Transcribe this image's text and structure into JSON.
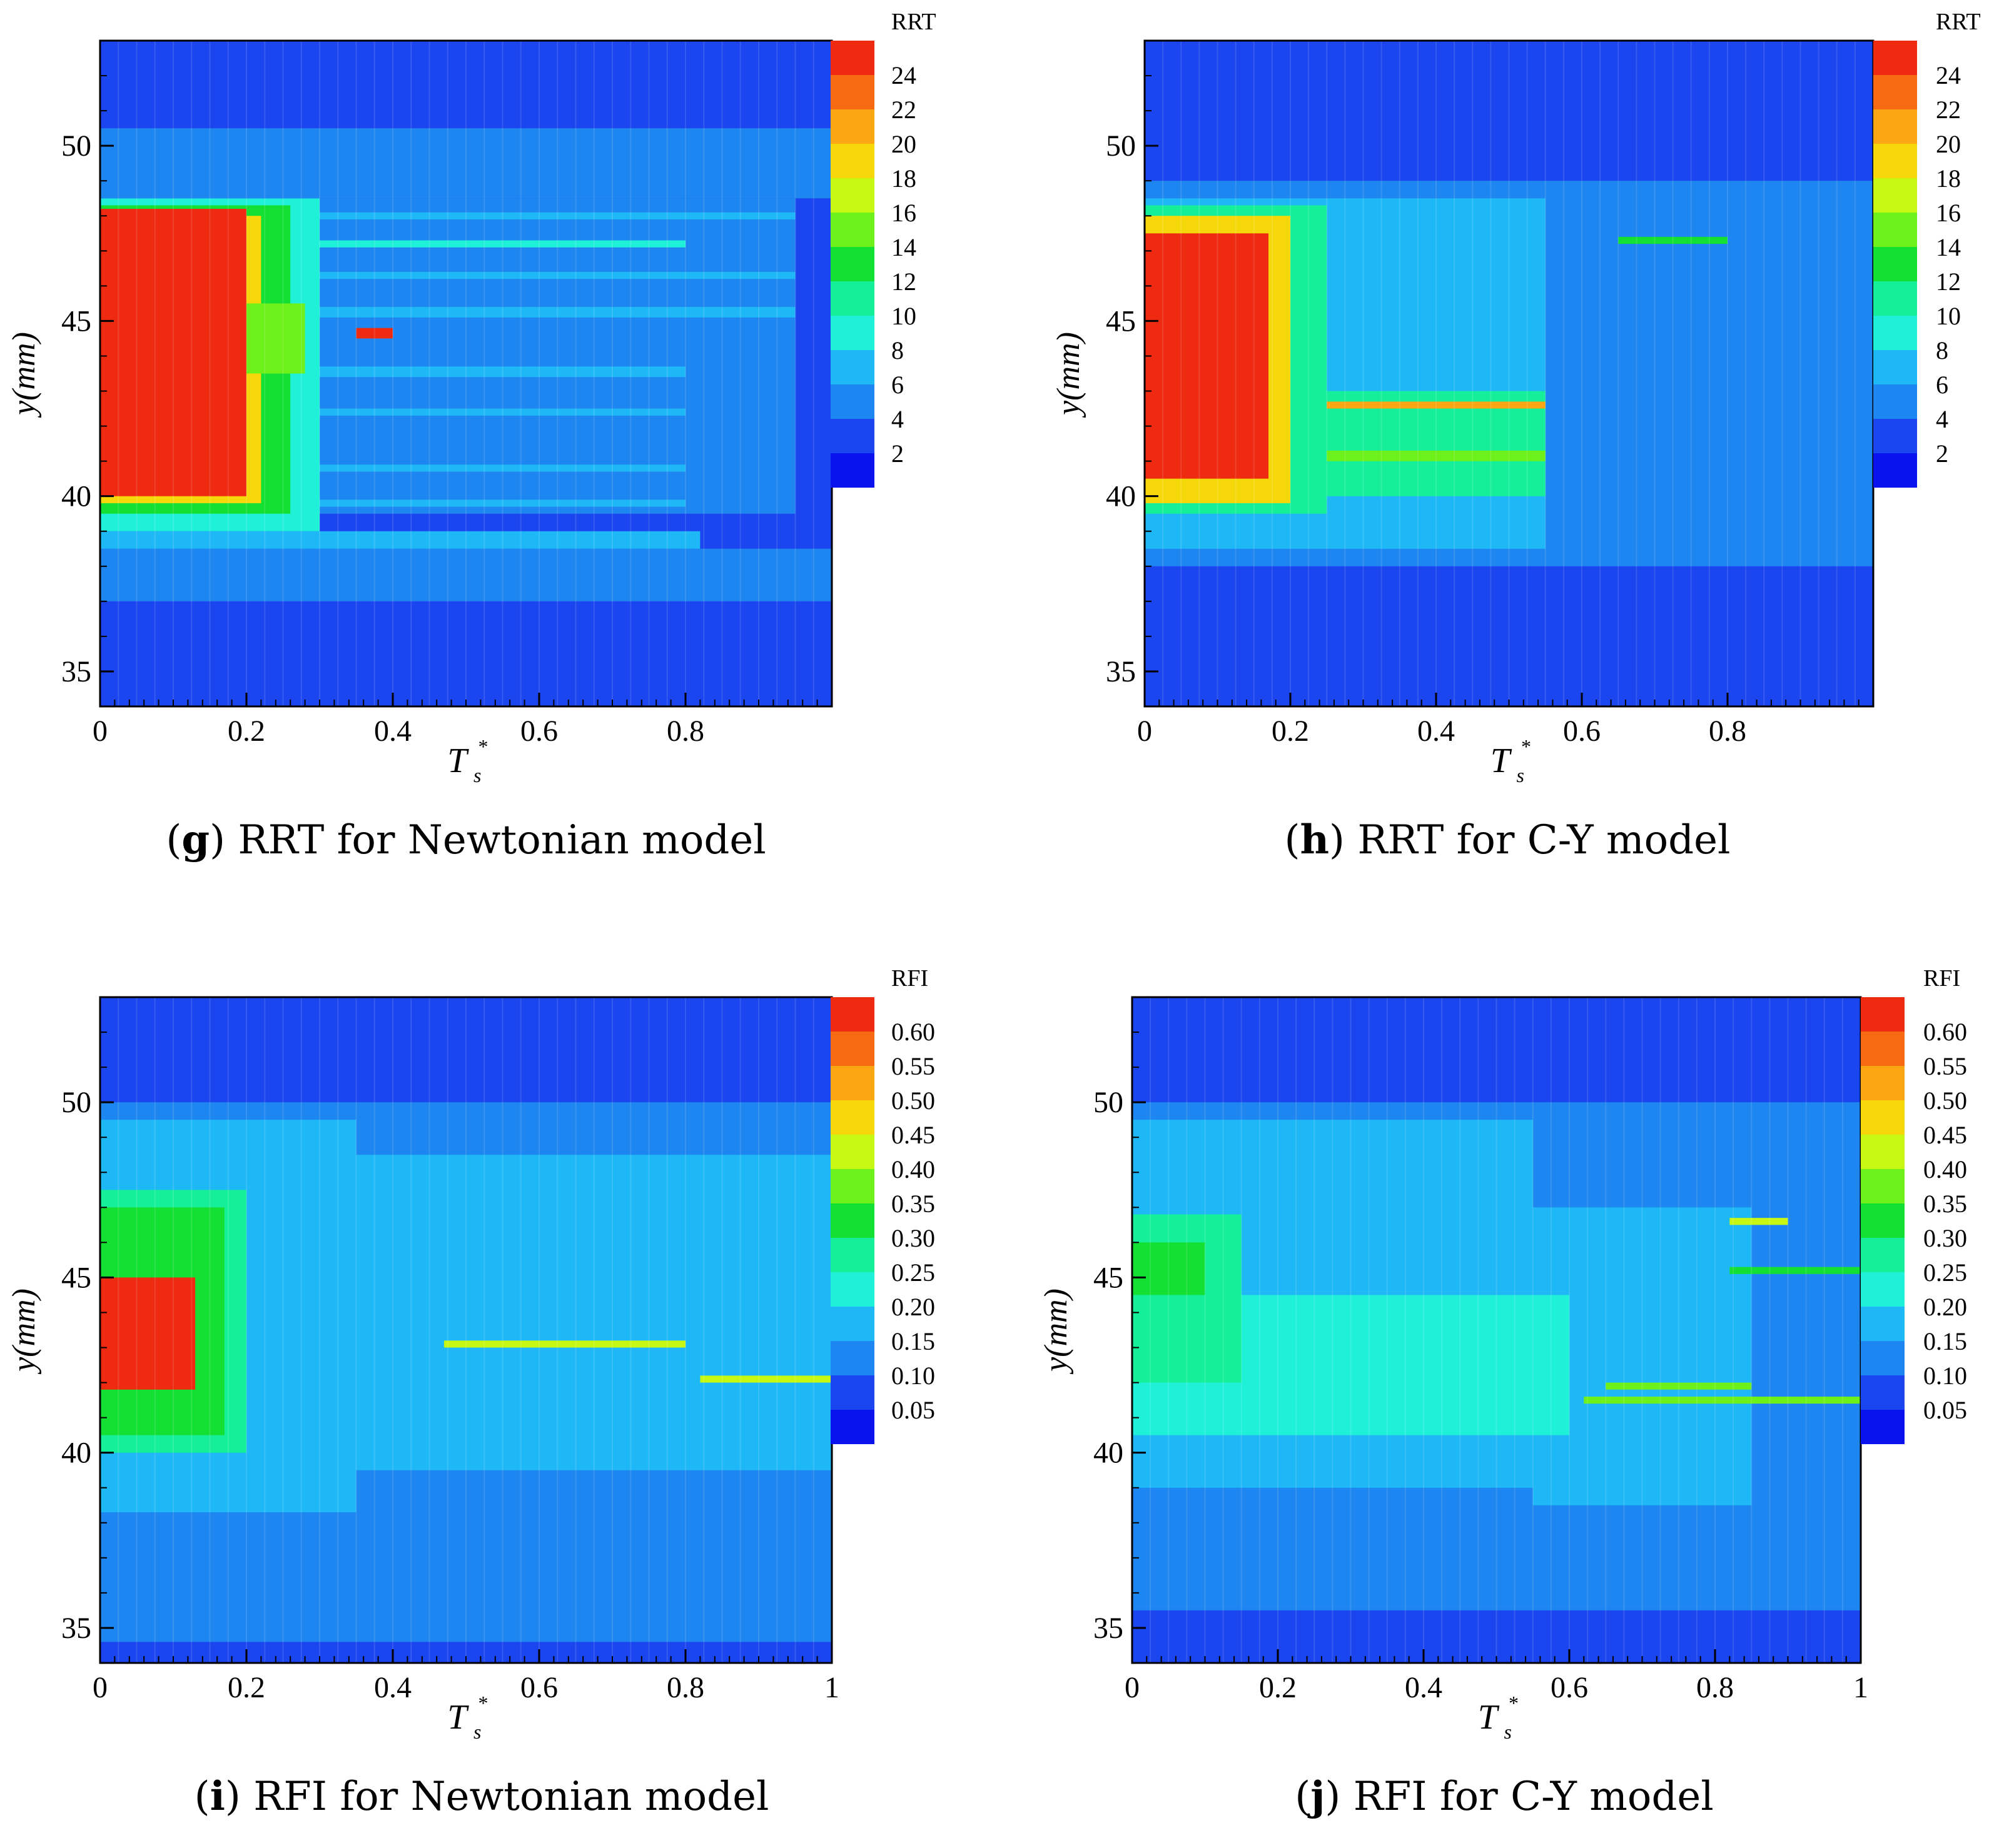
{
  "colors": {
    "scale": [
      "#0a12ee",
      "#1b45ee",
      "#1e86f0",
      "#1fb8f6",
      "#1ff0d8",
      "#15ef9a",
      "#14e034",
      "#6ef01a",
      "#c6f814",
      "#f6d80a",
      "#fca614",
      "#f86a12",
      "#ee2a10"
    ]
  },
  "chart_data": [
    {
      "id": "g",
      "type": "heatmap",
      "title": "",
      "caption_letter": "g",
      "caption_text": "RRT for Newtonian model",
      "xlabel": "T",
      "xlabel_sup": "*",
      "xlabel_sub": "s",
      "ylabel": "y(mm)",
      "xlim": [
        0,
        1
      ],
      "ylim": [
        34,
        53
      ],
      "x_ticks": [
        "0",
        "0.2",
        "0.4",
        "0.6",
        "0.8"
      ],
      "x_tick_values": [
        0,
        0.2,
        0.4,
        0.6,
        0.8
      ],
      "y_ticks": [
        "35",
        "40",
        "45",
        "50"
      ],
      "y_tick_values": [
        35,
        40,
        45,
        50
      ],
      "legend_title": "RRT",
      "legend_labels": [
        "24",
        "22",
        "20",
        "18",
        "16",
        "14",
        "12",
        "10",
        "8",
        "6",
        "4",
        "2"
      ],
      "legend_values": [
        24,
        22,
        20,
        18,
        16,
        14,
        12,
        10,
        8,
        6,
        4,
        2
      ],
      "background_level": 1,
      "bands": [
        {
          "y0": 34,
          "y1": 37,
          "x0": 0,
          "x1": 1,
          "level": 1
        },
        {
          "y0": 37,
          "y1": 38.5,
          "x0": 0,
          "x1": 1,
          "level": 2
        },
        {
          "y0": 38.5,
          "y1": 39,
          "x0": 0,
          "x1": 0.82,
          "level": 3
        },
        {
          "y0": 39,
          "y1": 48.5,
          "x0": 0,
          "x1": 0.3,
          "level": 4
        },
        {
          "y0": 39.5,
          "y1": 48.5,
          "x0": 0.3,
          "x1": 0.95,
          "level": 2
        },
        {
          "y0": 39.7,
          "y1": 39.9,
          "x0": 0.3,
          "x1": 0.8,
          "level": 3
        },
        {
          "y0": 40.7,
          "y1": 40.9,
          "x0": 0.3,
          "x1": 0.8,
          "level": 3
        },
        {
          "y0": 42.3,
          "y1": 42.5,
          "x0": 0.3,
          "x1": 0.8,
          "level": 3
        },
        {
          "y0": 43.4,
          "y1": 43.7,
          "x0": 0.3,
          "x1": 0.8,
          "level": 3
        },
        {
          "y0": 45.1,
          "y1": 45.4,
          "x0": 0.3,
          "x1": 0.95,
          "level": 3
        },
        {
          "y0": 46.2,
          "y1": 46.4,
          "x0": 0.3,
          "x1": 0.95,
          "level": 3
        },
        {
          "y0": 47.1,
          "y1": 47.3,
          "x0": 0.3,
          "x1": 0.8,
          "level": 4
        },
        {
          "y0": 47.9,
          "y1": 48.1,
          "x0": 0.3,
          "x1": 0.95,
          "level": 3
        },
        {
          "y0": 48.5,
          "y1": 50.5,
          "x0": 0,
          "x1": 1,
          "level": 2
        },
        {
          "y0": 39.5,
          "y1": 48.3,
          "x0": 0,
          "x1": 0.26,
          "level": 6
        },
        {
          "y0": 39.8,
          "y1": 48,
          "x0": 0,
          "x1": 0.22,
          "level": 9
        },
        {
          "y0": 40,
          "y1": 47.8,
          "x0": 0,
          "x1": 0.2,
          "level": 12
        },
        {
          "y0": 47.6,
          "y1": 48.2,
          "x0": 0,
          "x1": 0.2,
          "level": 12
        },
        {
          "y0": 43.5,
          "y1": 45.5,
          "x0": 0.2,
          "x1": 0.28,
          "level": 7
        },
        {
          "y0": 44.5,
          "y1": 44.8,
          "x0": 0.35,
          "x1": 0.4,
          "level": 12
        }
      ]
    },
    {
      "id": "h",
      "type": "heatmap",
      "title": "",
      "caption_letter": "h",
      "caption_text": "RRT for C-Y model",
      "xlabel": "T",
      "xlabel_sup": "*",
      "xlabel_sub": "s",
      "ylabel": "y(mm)",
      "xlim": [
        0,
        1
      ],
      "ylim": [
        34,
        53
      ],
      "x_ticks": [
        "0",
        "0.2",
        "0.4",
        "0.6",
        "0.8"
      ],
      "x_tick_values": [
        0,
        0.2,
        0.4,
        0.6,
        0.8
      ],
      "y_ticks": [
        "35",
        "40",
        "45",
        "50"
      ],
      "y_tick_values": [
        35,
        40,
        45,
        50
      ],
      "legend_title": "RRT",
      "legend_labels": [
        "24",
        "22",
        "20",
        "18",
        "16",
        "14",
        "12",
        "10",
        "8",
        "6",
        "4",
        "2"
      ],
      "legend_values": [
        24,
        22,
        20,
        18,
        16,
        14,
        12,
        10,
        8,
        6,
        4,
        2
      ],
      "background_level": 1,
      "bands": [
        {
          "y0": 34,
          "y1": 38,
          "x0": 0,
          "x1": 1,
          "level": 1
        },
        {
          "y0": 38,
          "y1": 49,
          "x0": 0,
          "x1": 1,
          "level": 2
        },
        {
          "y0": 38.5,
          "y1": 48.5,
          "x0": 0,
          "x1": 0.55,
          "level": 3
        },
        {
          "y0": 39.5,
          "y1": 48.3,
          "x0": 0,
          "x1": 0.25,
          "level": 5
        },
        {
          "y0": 40,
          "y1": 43,
          "x0": 0.2,
          "x1": 0.55,
          "level": 5
        },
        {
          "y0": 42.5,
          "y1": 42.7,
          "x0": 0.25,
          "x1": 0.55,
          "level": 10
        },
        {
          "y0": 41,
          "y1": 41.3,
          "x0": 0.25,
          "x1": 0.55,
          "level": 7
        },
        {
          "y0": 47.2,
          "y1": 47.4,
          "x0": 0.65,
          "x1": 0.8,
          "level": 6
        },
        {
          "y0": 39.8,
          "y1": 48,
          "x0": 0,
          "x1": 0.2,
          "level": 9
        },
        {
          "y0": 40.5,
          "y1": 47.5,
          "x0": 0,
          "x1": 0.17,
          "level": 12
        }
      ]
    },
    {
      "id": "i",
      "type": "heatmap",
      "title": "",
      "caption_letter": "i",
      "caption_text": "RFI for Newtonian model",
      "xlabel": "T",
      "xlabel_sup": "*",
      "xlabel_sub": "s",
      "ylabel": "y(mm)",
      "xlim": [
        0,
        1
      ],
      "ylim": [
        34,
        53
      ],
      "x_ticks": [
        "0",
        "0.2",
        "0.4",
        "0.6",
        "0.8",
        "1"
      ],
      "x_tick_values": [
        0,
        0.2,
        0.4,
        0.6,
        0.8,
        1
      ],
      "y_ticks": [
        "35",
        "40",
        "45",
        "50"
      ],
      "y_tick_values": [
        35,
        40,
        45,
        50
      ],
      "legend_title": "RFI",
      "legend_labels": [
        "0.60",
        "0.55",
        "0.50",
        "0.45",
        "0.40",
        "0.35",
        "0.30",
        "0.25",
        "0.20",
        "0.15",
        "0.10",
        "0.05"
      ],
      "legend_values": [
        0.6,
        0.55,
        0.5,
        0.45,
        0.4,
        0.35,
        0.3,
        0.25,
        0.2,
        0.15,
        0.1,
        0.05
      ],
      "background_level": 1,
      "bands": [
        {
          "y0": 34,
          "y1": 34.6,
          "x0": 0,
          "x1": 1,
          "level": 1
        },
        {
          "y0": 34.6,
          "y1": 50,
          "x0": 0,
          "x1": 1,
          "level": 2
        },
        {
          "y0": 38.3,
          "y1": 49.5,
          "x0": 0,
          "x1": 0.35,
          "level": 3
        },
        {
          "y0": 39.5,
          "y1": 48.5,
          "x0": 0.35,
          "x1": 1,
          "level": 3
        },
        {
          "y0": 40,
          "y1": 47.5,
          "x0": 0,
          "x1": 0.2,
          "level": 5
        },
        {
          "y0": 40.5,
          "y1": 47,
          "x0": 0,
          "x1": 0.17,
          "level": 6
        },
        {
          "y0": 43,
          "y1": 43.2,
          "x0": 0.47,
          "x1": 0.8,
          "level": 8
        },
        {
          "y0": 42,
          "y1": 42.2,
          "x0": 0.82,
          "x1": 1,
          "level": 8
        },
        {
          "y0": 41.8,
          "y1": 45,
          "x0": 0,
          "x1": 0.13,
          "level": 12
        }
      ]
    },
    {
      "id": "j",
      "type": "heatmap",
      "title": "",
      "caption_letter": "j",
      "caption_text": "RFI for C-Y model",
      "xlabel": "T",
      "xlabel_sup": "*",
      "xlabel_sub": "s",
      "ylabel": "y(mm)",
      "xlim": [
        0,
        1
      ],
      "ylim": [
        34,
        53
      ],
      "x_ticks": [
        "0",
        "0.2",
        "0.4",
        "0.6",
        "0.8",
        "1"
      ],
      "x_tick_values": [
        0,
        0.2,
        0.4,
        0.6,
        0.8,
        1
      ],
      "y_ticks": [
        "35",
        "40",
        "45",
        "50"
      ],
      "y_tick_values": [
        35,
        40,
        45,
        50
      ],
      "legend_title": "RFI",
      "legend_labels": [
        "0.60",
        "0.55",
        "0.50",
        "0.45",
        "0.40",
        "0.35",
        "0.30",
        "0.25",
        "0.20",
        "0.15",
        "0.10",
        "0.05"
      ],
      "legend_values": [
        0.6,
        0.55,
        0.5,
        0.45,
        0.4,
        0.35,
        0.3,
        0.25,
        0.2,
        0.15,
        0.1,
        0.05
      ],
      "background_level": 1,
      "bands": [
        {
          "y0": 34,
          "y1": 35.5,
          "x0": 0,
          "x1": 1,
          "level": 1
        },
        {
          "y0": 35.5,
          "y1": 50,
          "x0": 0,
          "x1": 1,
          "level": 2
        },
        {
          "y0": 39,
          "y1": 49.5,
          "x0": 0,
          "x1": 0.55,
          "level": 3
        },
        {
          "y0": 38.5,
          "y1": 47,
          "x0": 0.55,
          "x1": 0.85,
          "level": 3
        },
        {
          "y0": 40.5,
          "y1": 44.5,
          "x0": 0,
          "x1": 0.6,
          "level": 4
        },
        {
          "y0": 42,
          "y1": 46.8,
          "x0": 0,
          "x1": 0.15,
          "level": 5
        },
        {
          "y0": 44.5,
          "y1": 46,
          "x0": 0,
          "x1": 0.1,
          "level": 6
        },
        {
          "y0": 41.4,
          "y1": 41.6,
          "x0": 0.62,
          "x1": 1,
          "level": 7
        },
        {
          "y0": 41.8,
          "y1": 42,
          "x0": 0.65,
          "x1": 0.85,
          "level": 7
        },
        {
          "y0": 46.5,
          "y1": 46.7,
          "x0": 0.82,
          "x1": 0.9,
          "level": 8
        },
        {
          "y0": 45.1,
          "y1": 45.3,
          "x0": 0.82,
          "x1": 1,
          "level": 6
        }
      ]
    }
  ]
}
